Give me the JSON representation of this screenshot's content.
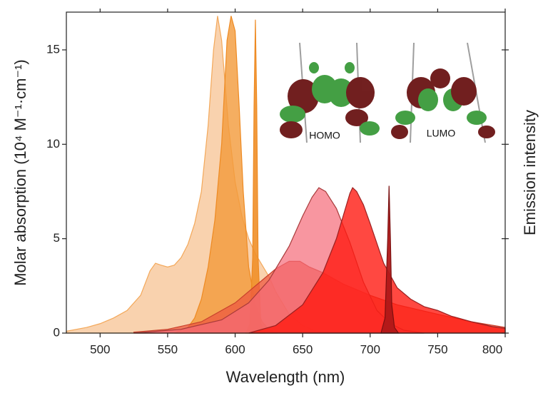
{
  "chart_data": {
    "type": "area",
    "x_label": "Wavelength (nm)",
    "y_label": "Molar absorption (10⁴ M⁻¹·cm⁻¹)",
    "y2_label": "Emission intensity",
    "xlim": [
      475,
      800
    ],
    "xticks": [
      500,
      550,
      600,
      650,
      700,
      750,
      800
    ],
    "ylim": [
      0,
      17
    ],
    "yticks": [
      0,
      5,
      10,
      15
    ],
    "annotations": [
      {
        "text": "HOMO"
      },
      {
        "text": "LUMO"
      }
    ],
    "series": [
      {
        "color": "#f3a85a",
        "fill": "#f8caa0",
        "fill_opacity": 0.85,
        "x": [
          475,
          490,
          500,
          510,
          520,
          530,
          537,
          541,
          545,
          550,
          555,
          560,
          565,
          570,
          575,
          580,
          584,
          587,
          590,
          595,
          600,
          605,
          610,
          615,
          620,
          625,
          630,
          640,
          650,
          660,
          670
        ],
        "values": [
          0.1,
          0.3,
          0.5,
          0.8,
          1.2,
          2.0,
          3.3,
          3.7,
          3.6,
          3.5,
          3.6,
          4.0,
          4.7,
          5.8,
          7.5,
          11,
          15,
          16.8,
          15.5,
          11,
          8,
          6.2,
          5.0,
          4.2,
          3.6,
          3.0,
          2.2,
          1.0,
          0.4,
          0.1,
          0
        ]
      },
      {
        "color": "#ee8a22",
        "fill": "#f29a3a",
        "fill_opacity": 0.8,
        "x": [
          555,
          565,
          570,
          575,
          580,
          585,
          590,
          594,
          597,
          600,
          603,
          606,
          610,
          615,
          620,
          625,
          630
        ],
        "values": [
          0,
          0.3,
          0.8,
          1.8,
          3.5,
          6,
          10,
          15.5,
          16.8,
          16,
          12,
          7.5,
          3.5,
          1.5,
          0.6,
          0.2,
          0
        ]
      },
      {
        "color": "#ee8a22",
        "fill": "#f08f28",
        "fill_opacity": 0.9,
        "x": [
          608,
          611,
          613,
          614,
          615,
          616,
          617,
          619,
          622
        ],
        "values": [
          0,
          0.5,
          4,
          12,
          16.6,
          12,
          4,
          0.5,
          0
        ]
      },
      {
        "color": "#c8402c",
        "fill": "#ee5a40",
        "fill_opacity": 0.75,
        "x": [
          525,
          550,
          575,
          600,
          620,
          630,
          640,
          648,
          655,
          665,
          680,
          700,
          720,
          750,
          775,
          800
        ],
        "values": [
          0.05,
          0.2,
          0.6,
          1.6,
          2.8,
          3.4,
          3.8,
          3.8,
          3.5,
          3.2,
          2.6,
          2.0,
          1.5,
          1.0,
          0.6,
          0.3
        ]
      },
      {
        "color": "#a83a3a",
        "fill": "#f56a78",
        "fill_opacity": 0.7,
        "x": [
          525,
          560,
          590,
          610,
          625,
          640,
          650,
          657,
          662,
          667,
          675,
          685,
          695,
          705,
          715,
          725,
          740
        ],
        "values": [
          0,
          0.2,
          0.7,
          1.6,
          2.8,
          4.6,
          6.2,
          7.2,
          7.7,
          7.5,
          6.6,
          4.8,
          2.7,
          1.2,
          0.5,
          0.15,
          0
        ]
      },
      {
        "color": "#9a2020",
        "fill": "#ff1a12",
        "fill_opacity": 0.8,
        "x": [
          610,
          630,
          650,
          665,
          675,
          680,
          685,
          687,
          690,
          695,
          700,
          710,
          720,
          730,
          740,
          750,
          760,
          775,
          790,
          800
        ],
        "values": [
          0,
          0.4,
          1.5,
          3.2,
          5.0,
          6.2,
          7.4,
          7.7,
          7.5,
          6.8,
          5.8,
          3.7,
          2.4,
          1.8,
          1.4,
          1.2,
          0.9,
          0.6,
          0.35,
          0.25
        ]
      },
      {
        "color": "#7a1010",
        "fill": "#b01818",
        "fill_opacity": 0.95,
        "x": [
          708,
          711,
          713,
          714,
          715,
          716,
          718,
          721
        ],
        "values": [
          0,
          0.8,
          5,
          7.8,
          5,
          1.5,
          0.3,
          0
        ]
      }
    ]
  }
}
